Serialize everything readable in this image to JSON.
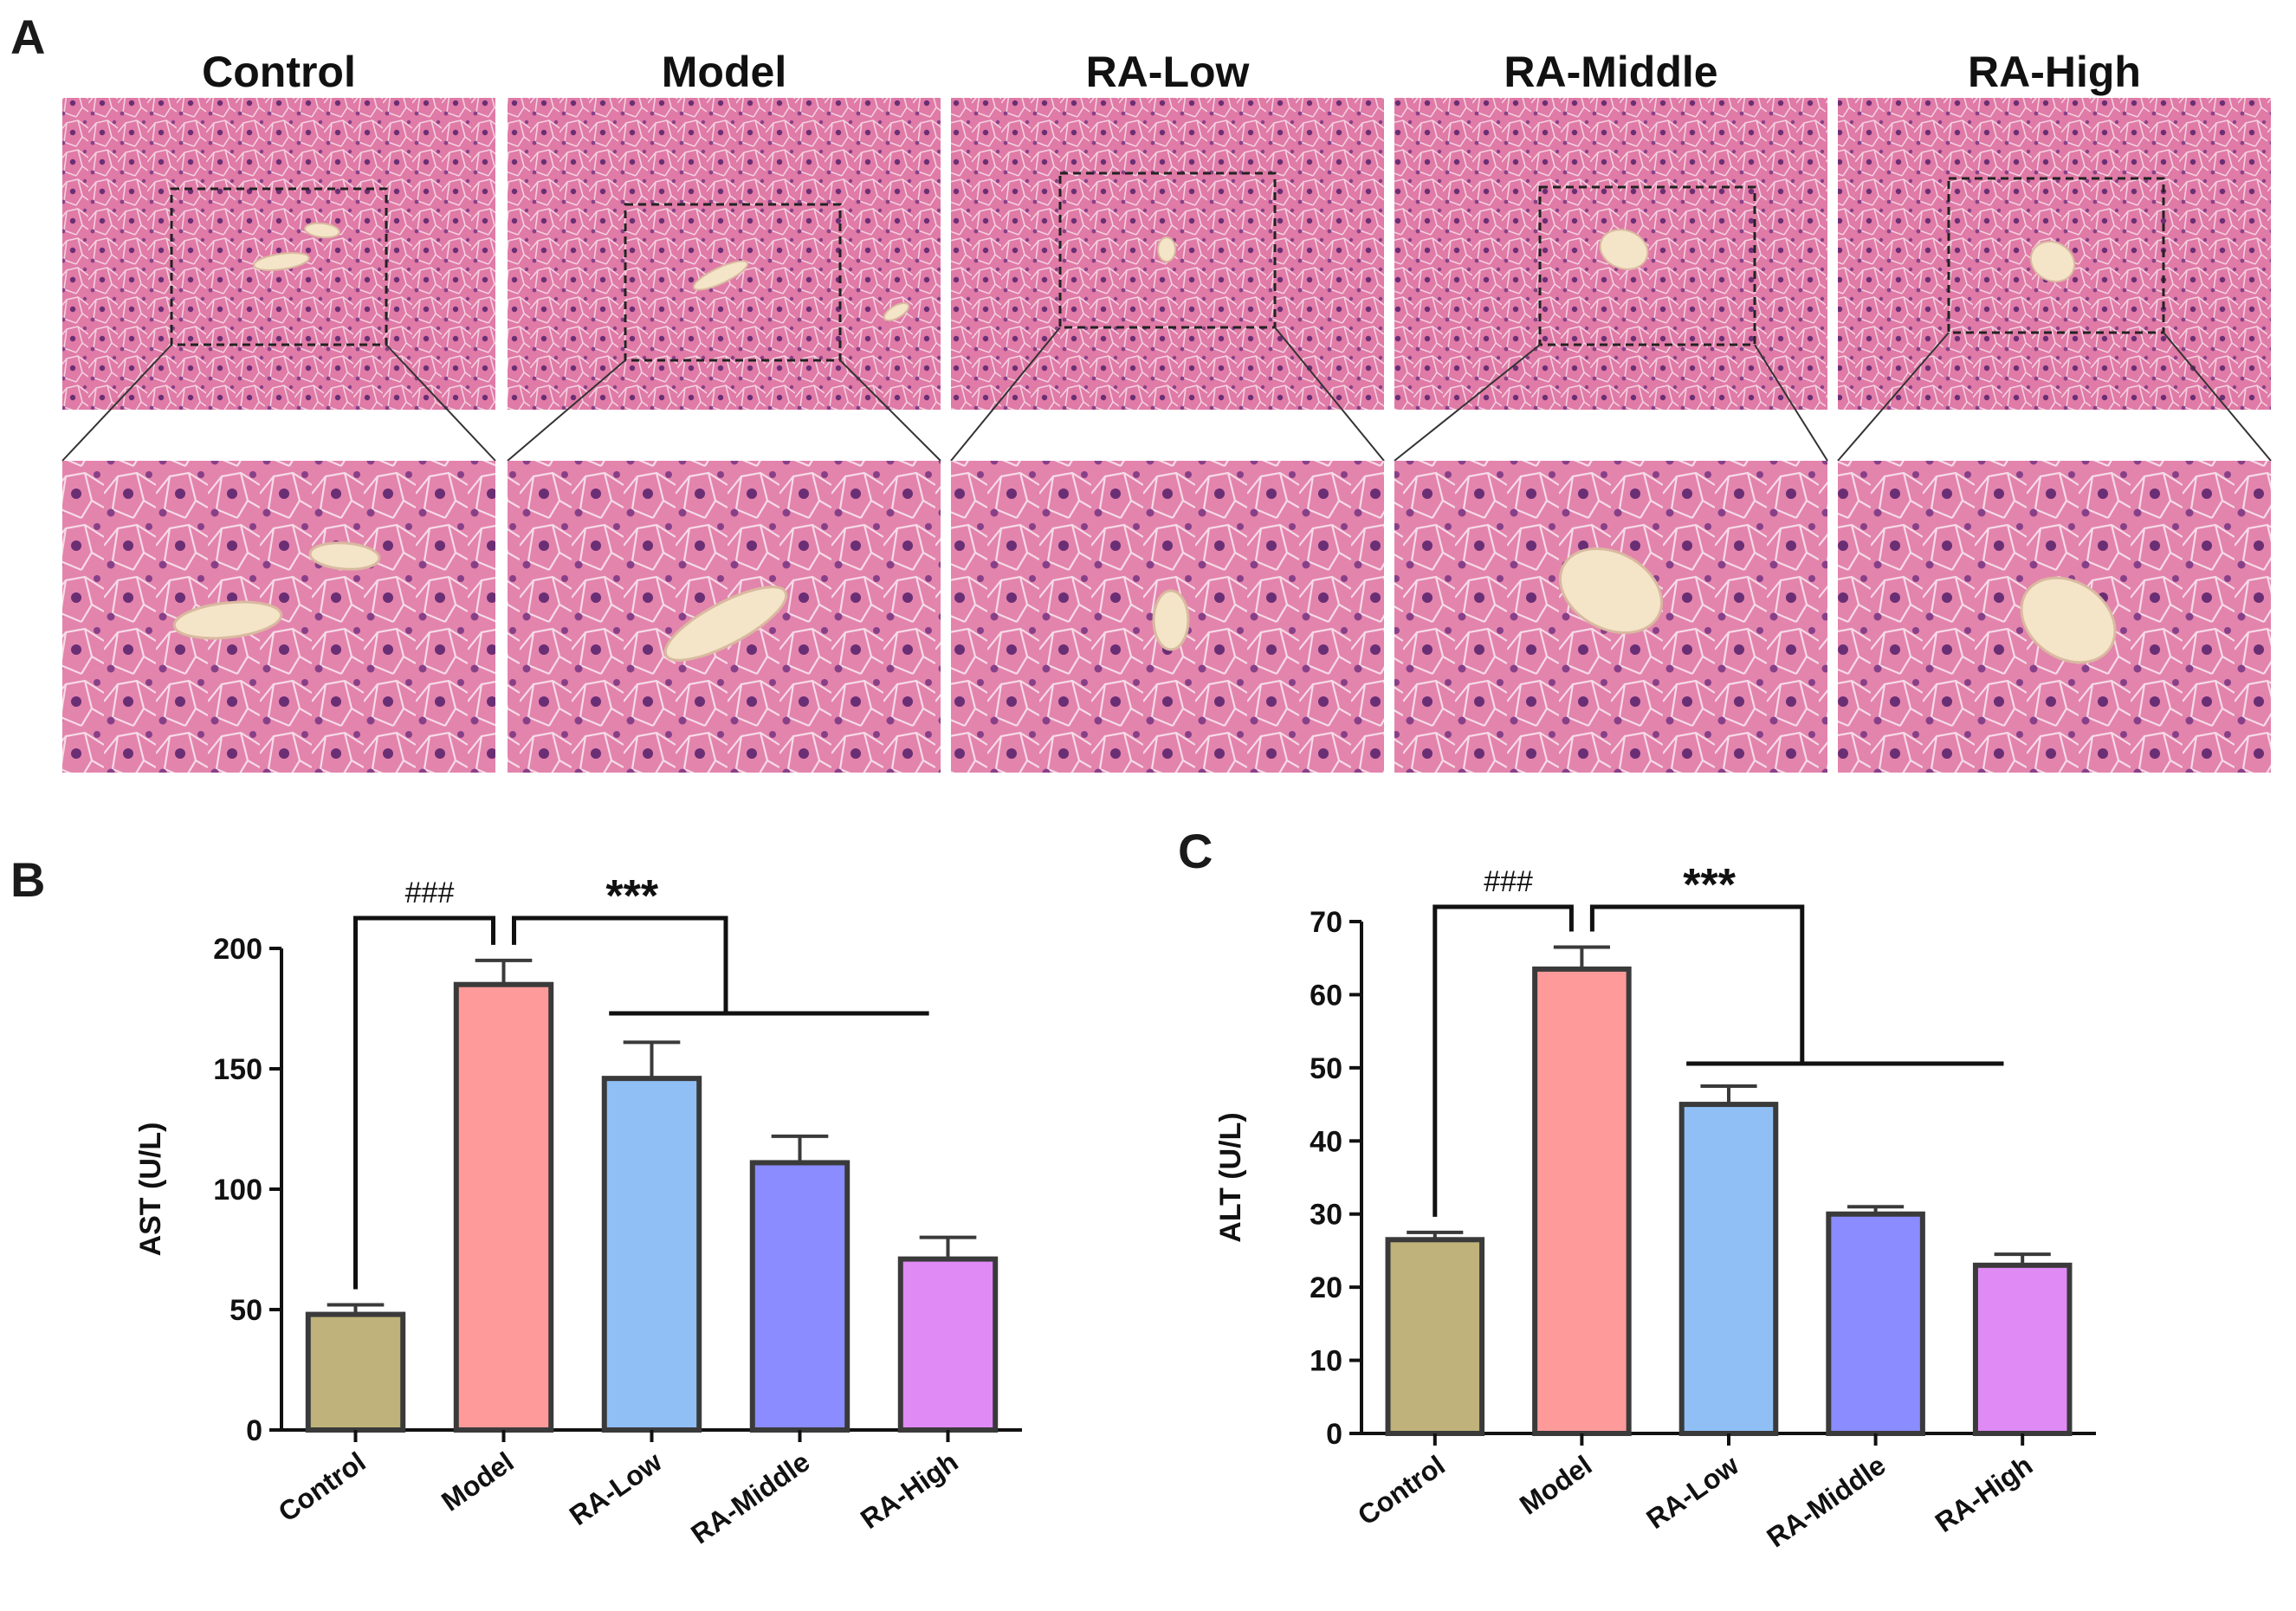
{
  "figure": {
    "panel_a_letter": "A",
    "panel_b_letter": "B",
    "panel_c_letter": "C",
    "histology_groups": [
      "Control",
      "Model",
      "RA-Low",
      "RA-Middle",
      "RA-High"
    ]
  },
  "colors": {
    "tissue_background": "#e07aa6",
    "tissue_dark": "#b0437a",
    "nuclei": "#6a2e74",
    "vessel_lumen": "#f4e4c8",
    "axis": "#111111",
    "bar_outline": "#3a3a3a"
  },
  "chart_data": [
    {
      "type": "bar",
      "panel": "B",
      "title": "",
      "xlabel": "",
      "ylabel": "AST (U/L)",
      "ylim": [
        0,
        200
      ],
      "yticks": [
        0,
        50,
        100,
        150,
        200
      ],
      "categories": [
        "Control",
        "Model",
        "RA-Low",
        "RA-Middle",
        "RA-High"
      ],
      "values": [
        48,
        185,
        146,
        111,
        71
      ],
      "errors": [
        4,
        10,
        15,
        11,
        9
      ],
      "bar_colors": [
        "#bfb27a",
        "#ff9a9a",
        "#8fbff5",
        "#8a8cff",
        "#e08af5"
      ],
      "annotations": {
        "hash": "###",
        "stars": "***"
      }
    },
    {
      "type": "bar",
      "panel": "C",
      "title": "",
      "xlabel": "",
      "ylabel": "ALT (U/L)",
      "ylim": [
        0,
        70
      ],
      "yticks": [
        0,
        10,
        20,
        30,
        40,
        50,
        60,
        70
      ],
      "categories": [
        "Control",
        "Model",
        "RA-Low",
        "RA-Middle",
        "RA-High"
      ],
      "values": [
        26.5,
        63.5,
        45,
        30,
        23
      ],
      "errors": [
        1,
        3,
        2.5,
        1,
        1.5
      ],
      "bar_colors": [
        "#bfb27a",
        "#ff9a9a",
        "#8fbff5",
        "#8a8cff",
        "#e08af5"
      ],
      "annotations": {
        "hash": "###",
        "stars": "***"
      }
    }
  ]
}
